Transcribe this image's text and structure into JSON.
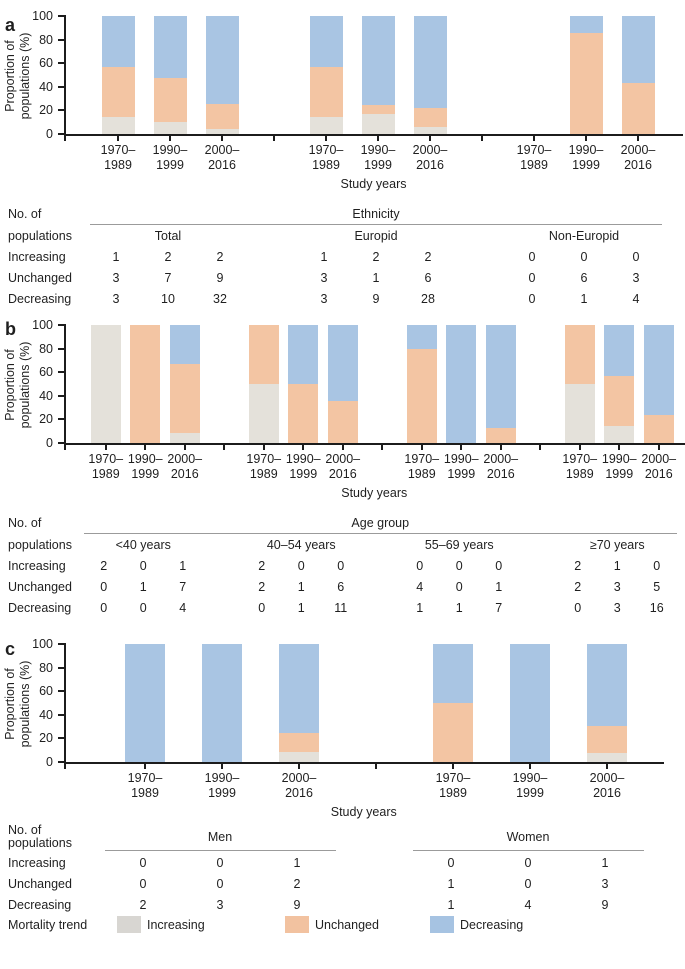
{
  "figure": {
    "ylabel_line1": "Proportion of",
    "ylabel_line2": "populations (%)",
    "yticks": [
      100,
      80,
      60,
      40,
      20,
      0
    ],
    "xlabel": "Study years",
    "year_lines": [
      [
        "1970–",
        "1989"
      ],
      [
        "1990–",
        "1999"
      ],
      [
        "2000–",
        "2016"
      ]
    ],
    "row_label_lines": [
      "No. of",
      "populations"
    ],
    "trend_rows": [
      "Increasing",
      "Unchanged",
      "Decreasing"
    ],
    "colors": {
      "Increasing": "#e4e1da",
      "Unchanged": "#f3c5a3",
      "Decreasing": "#a9c5e3"
    }
  },
  "chart_data": [
    {
      "letter": "a",
      "type": "bar",
      "stacked": true,
      "percent": true,
      "ylabel": "Proportion of populations (%)",
      "xlabel": "Study years",
      "ylim": [
        0,
        100
      ],
      "group_header": "Ethnicity",
      "categories": [
        "1970–1989",
        "1990–1999",
        "2000–2016"
      ],
      "groups": [
        {
          "name": "Total",
          "series": {
            "Increasing": [
              1,
              2,
              2
            ],
            "Unchanged": [
              3,
              7,
              9
            ],
            "Decreasing": [
              3,
              10,
              32
            ]
          }
        },
        {
          "name": "Europid",
          "series": {
            "Increasing": [
              1,
              2,
              2
            ],
            "Unchanged": [
              3,
              1,
              6
            ],
            "Decreasing": [
              3,
              9,
              28
            ]
          }
        },
        {
          "name": "Non-Europid",
          "series": {
            "Increasing": [
              0,
              0,
              0
            ],
            "Unchanged": [
              0,
              6,
              3
            ],
            "Decreasing": [
              0,
              1,
              4
            ]
          }
        }
      ]
    },
    {
      "letter": "b",
      "type": "bar",
      "stacked": true,
      "percent": true,
      "ylabel": "Proportion of populations (%)",
      "xlabel": "Study years",
      "ylim": [
        0,
        100
      ],
      "group_header": "Age group",
      "categories": [
        "1970–1989",
        "1990–1999",
        "2000–2016"
      ],
      "groups": [
        {
          "name": "<40 years",
          "series": {
            "Increasing": [
              2,
              0,
              1
            ],
            "Unchanged": [
              0,
              1,
              7
            ],
            "Decreasing": [
              0,
              0,
              4
            ]
          }
        },
        {
          "name": "40–54 years",
          "series": {
            "Increasing": [
              2,
              0,
              0
            ],
            "Unchanged": [
              2,
              1,
              6
            ],
            "Decreasing": [
              0,
              1,
              11
            ]
          }
        },
        {
          "name": "55–69 years",
          "series": {
            "Increasing": [
              0,
              0,
              0
            ],
            "Unchanged": [
              4,
              0,
              1
            ],
            "Decreasing": [
              1,
              1,
              7
            ]
          }
        },
        {
          "name": "≥70 years",
          "series": {
            "Increasing": [
              2,
              1,
              0
            ],
            "Unchanged": [
              2,
              3,
              5
            ],
            "Decreasing": [
              0,
              3,
              16
            ]
          }
        }
      ]
    },
    {
      "letter": "c",
      "type": "bar",
      "stacked": true,
      "percent": true,
      "ylabel": "Proportion of populations (%)",
      "xlabel": "Study years",
      "ylim": [
        0,
        100
      ],
      "group_header": null,
      "categories": [
        "1970–1989",
        "1990–1999",
        "2000–2016"
      ],
      "groups": [
        {
          "name": "Men",
          "series": {
            "Increasing": [
              0,
              0,
              1
            ],
            "Unchanged": [
              0,
              0,
              2
            ],
            "Decreasing": [
              2,
              3,
              9
            ]
          }
        },
        {
          "name": "Women",
          "series": {
            "Increasing": [
              0,
              0,
              1
            ],
            "Unchanged": [
              1,
              0,
              3
            ],
            "Decreasing": [
              1,
              4,
              9
            ]
          }
        }
      ]
    }
  ],
  "legend": {
    "title": "Mortality trend",
    "items": [
      {
        "label": "Increasing",
        "color": "#d8d6d2"
      },
      {
        "label": "Unchanged",
        "color": "#f2c2a0"
      },
      {
        "label": "Decreasing",
        "color": "#a6c3e2"
      }
    ]
  }
}
